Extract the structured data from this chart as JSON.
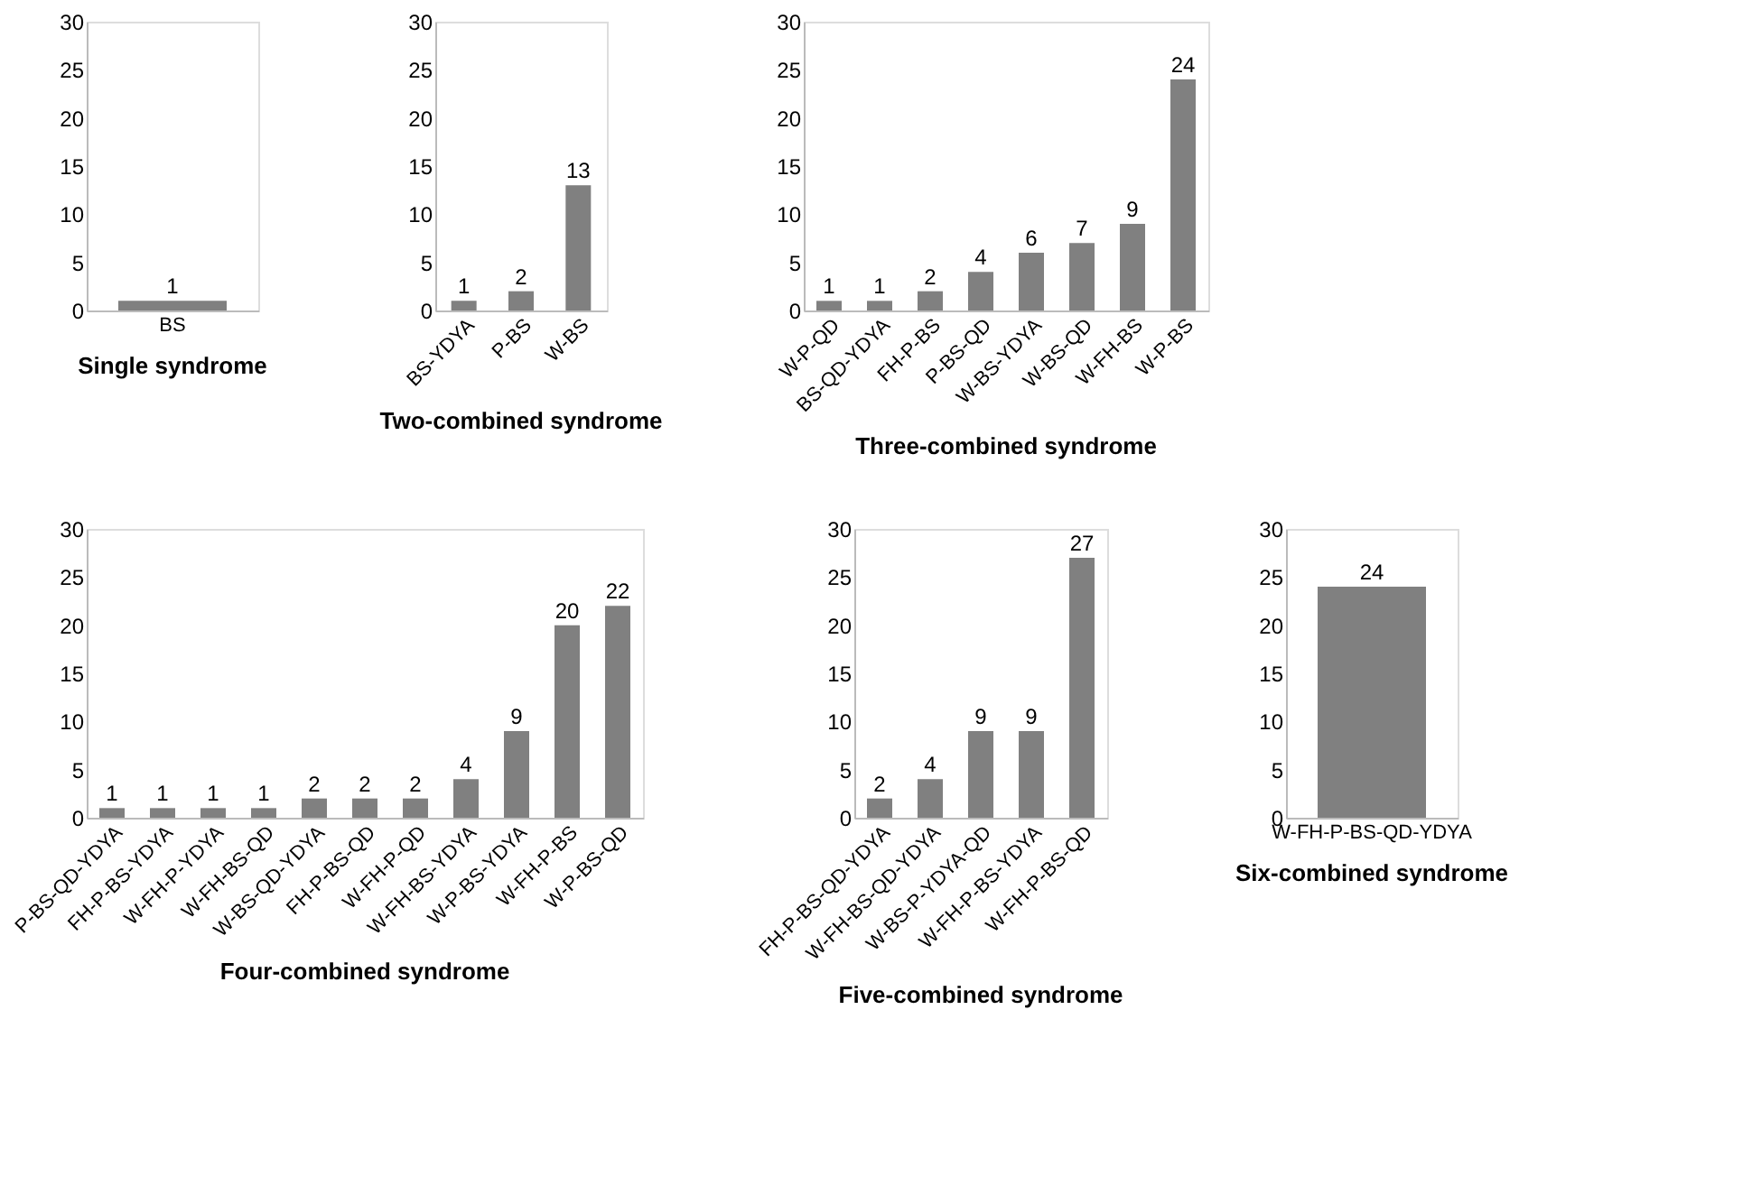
{
  "chart_data": [
    {
      "type": "bar",
      "title": "Single syndrome",
      "categories": [
        "BS"
      ],
      "values": [
        1
      ],
      "color": "#808080",
      "ylim": [
        0,
        30
      ],
      "yticks": [
        0,
        5,
        10,
        15,
        20,
        25,
        30
      ],
      "grid": false,
      "data_labels": true
    },
    {
      "type": "bar",
      "title": "Two-combined syndrome",
      "categories": [
        "BS-YDYA",
        "P-BS",
        "W-BS"
      ],
      "values": [
        1,
        2,
        13
      ],
      "color": "#808080",
      "ylim": [
        0,
        30
      ],
      "yticks": [
        0,
        5,
        10,
        15,
        20,
        25,
        30
      ],
      "grid": false,
      "data_labels": true
    },
    {
      "type": "bar",
      "title": "Three-combined syndrome",
      "categories": [
        "W-P-QD",
        "BS-QD-YDYA",
        "FH-P-BS",
        "P-BS-QD",
        "W-BS-YDYA",
        "W-BS-QD",
        "W-FH-BS",
        "W-P-BS"
      ],
      "values": [
        1,
        1,
        2,
        4,
        6,
        7,
        9,
        24
      ],
      "color": "#808080",
      "ylim": [
        0,
        30
      ],
      "yticks": [
        0,
        5,
        10,
        15,
        20,
        25,
        30
      ],
      "grid": false,
      "data_labels": true
    },
    {
      "type": "bar",
      "title": "Four-combined syndrome",
      "categories": [
        "P-BS-QD-YDYA",
        "FH-P-BS-YDYA",
        "W-FH-P-YDYA",
        "W-FH-BS-QD",
        "W-BS-QD-YDYA",
        "FH-P-BS-QD",
        "W-FH-P-QD",
        "W-FH-BS-YDYA",
        "W-P-BS-YDYA",
        "W-FH-P-BS",
        "W-P-BS-QD"
      ],
      "values": [
        1,
        1,
        1,
        1,
        2,
        2,
        2,
        4,
        9,
        20,
        22
      ],
      "color": "#808080",
      "ylim": [
        0,
        30
      ],
      "yticks": [
        0,
        5,
        10,
        15,
        20,
        25,
        30
      ],
      "grid": false,
      "data_labels": true
    },
    {
      "type": "bar",
      "title": "Five-combined syndrome",
      "categories": [
        "FH-P-BS-QD-YDYA",
        "W-FH-BS-QD-YDYA",
        "W-BS-P-YDYA-QD",
        "W-FH-P-BS-YDYA",
        "W-FH-P-BS-QD"
      ],
      "values": [
        2,
        4,
        9,
        9,
        27
      ],
      "color": "#808080",
      "ylim": [
        0,
        30
      ],
      "yticks": [
        0,
        5,
        10,
        15,
        20,
        25,
        30
      ],
      "grid": false,
      "data_labels": true
    },
    {
      "type": "bar",
      "title": "Six-combined syndrome",
      "categories": [
        "W-FH-P-BS-QD-YDYA"
      ],
      "values": [
        24
      ],
      "color": "#808080",
      "ylim": [
        0,
        30
      ],
      "yticks": [
        0,
        5,
        10,
        15,
        20,
        25,
        30
      ],
      "grid": false,
      "data_labels": true
    }
  ]
}
